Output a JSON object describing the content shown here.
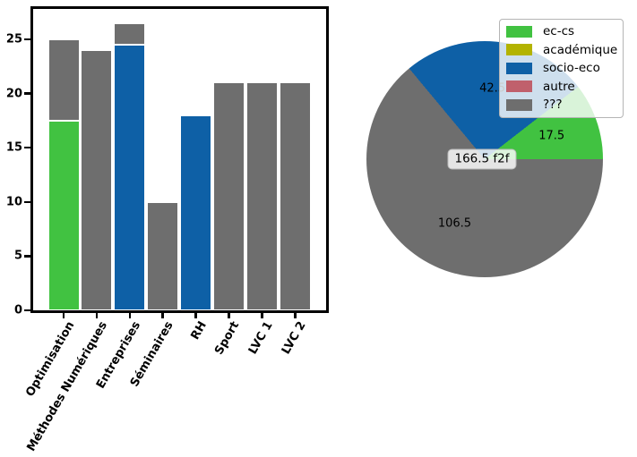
{
  "colors": {
    "green": "#41c241",
    "olive": "#b3b300",
    "blue": "#0e60a6",
    "rose": "#c0606c",
    "gray": "#6e6e6e",
    "axis": "#000000"
  },
  "chart_data": [
    {
      "type": "bar",
      "stacked": true,
      "title": "",
      "xlabel": "",
      "ylabel": "",
      "categories": [
        "Optimisation",
        "Méthodes Numériques",
        "Entreprises",
        "Séminaires",
        "RH",
        "Sport",
        "LVC 1",
        "LVC 2"
      ],
      "series": [
        {
          "name": "ec-cs",
          "color_key": "green",
          "values": [
            17.5,
            0,
            0,
            0,
            0,
            0,
            0,
            0
          ]
        },
        {
          "name": "socio-eco",
          "color_key": "blue",
          "values": [
            0,
            0,
            24.5,
            0,
            18,
            0,
            0,
            0
          ]
        },
        {
          "name": "???",
          "color_key": "gray",
          "values": [
            7.5,
            24,
            2,
            10,
            0,
            21,
            21,
            21
          ]
        }
      ],
      "totals": [
        25,
        24,
        26.5,
        10,
        18,
        21,
        21,
        21
      ],
      "yticks": [
        0,
        5,
        10,
        15,
        20,
        25
      ],
      "ylim": [
        0,
        27.8
      ],
      "grid": false
    },
    {
      "type": "pie",
      "title": "",
      "start_angle": 0,
      "direction": "counterclockwise",
      "slices": [
        {
          "label": "17.5",
          "value": 17.5,
          "color_key": "green",
          "legend": "ec-cs"
        },
        {
          "label": "42.5",
          "value": 42.5,
          "color_key": "blue",
          "legend": "socio-eco"
        },
        {
          "label": "106.5",
          "value": 106.5,
          "color_key": "gray",
          "legend": "???"
        }
      ],
      "center_label": "166.5 f2f",
      "legend": {
        "position": "upper right",
        "items": [
          {
            "label": "ec-cs",
            "color_key": "green"
          },
          {
            "label": "académique",
            "color_key": "olive"
          },
          {
            "label": "socio-eco",
            "color_key": "blue"
          },
          {
            "label": "autre",
            "color_key": "rose"
          },
          {
            "label": "???",
            "color_key": "gray"
          }
        ]
      }
    }
  ]
}
